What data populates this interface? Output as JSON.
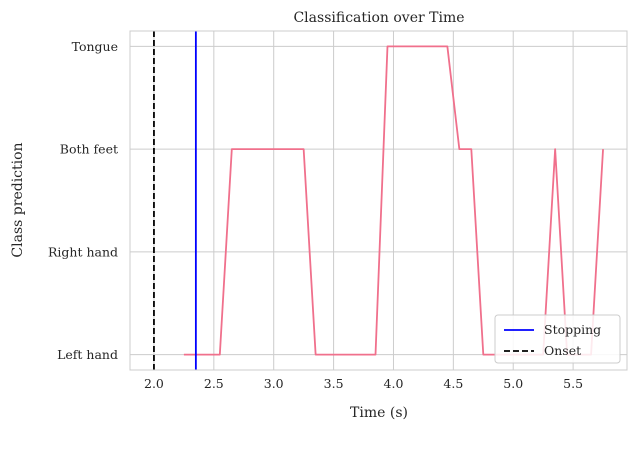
{
  "chart_data": {
    "type": "line",
    "title": "Classification over Time",
    "xlabel": "Time (s)",
    "ylabel": "Class prediction",
    "xlim": [
      1.8,
      5.95
    ],
    "ylim": [
      -0.15,
      3.15
    ],
    "xticks": [
      2.0,
      2.5,
      3.0,
      3.5,
      4.0,
      4.5,
      5.0,
      5.5
    ],
    "xtick_labels": [
      "2.0",
      "2.5",
      "3.0",
      "3.5",
      "4.0",
      "4.5",
      "5.0",
      "5.5"
    ],
    "yticks": [
      0,
      1,
      2,
      3
    ],
    "ytick_labels": [
      "Left hand",
      "Right hand",
      "Both feet",
      "Tongue"
    ],
    "grid": true,
    "series": [
      {
        "color": "#f0708c",
        "x": [
          2.25,
          2.35,
          2.45,
          2.55,
          2.65,
          2.75,
          2.85,
          2.95,
          3.05,
          3.15,
          3.25,
          3.35,
          3.45,
          3.55,
          3.65,
          3.75,
          3.85,
          3.95,
          4.05,
          4.15,
          4.25,
          4.35,
          4.45,
          4.55,
          4.65,
          4.75,
          4.85,
          4.95,
          5.05,
          5.15,
          5.25,
          5.35,
          5.45,
          5.55,
          5.65,
          5.75
        ],
        "y": [
          0,
          0,
          0,
          0,
          2,
          2,
          2,
          2,
          2,
          2,
          2,
          0,
          0,
          0,
          0,
          0,
          0,
          3,
          3,
          3,
          3,
          3,
          3,
          2,
          2,
          0,
          0,
          0,
          0,
          0,
          0,
          2,
          0,
          0,
          0,
          2
        ]
      }
    ],
    "vlines": [
      {
        "name": "Stopping",
        "x": 2.35,
        "color": "#0000ff",
        "style": "solid"
      },
      {
        "name": "Onset",
        "x": 2.0,
        "color": "#000000",
        "style": "dashed"
      }
    ],
    "legend": {
      "placement": "lower-right",
      "entries": [
        "Stopping",
        "Onset"
      ]
    }
  }
}
